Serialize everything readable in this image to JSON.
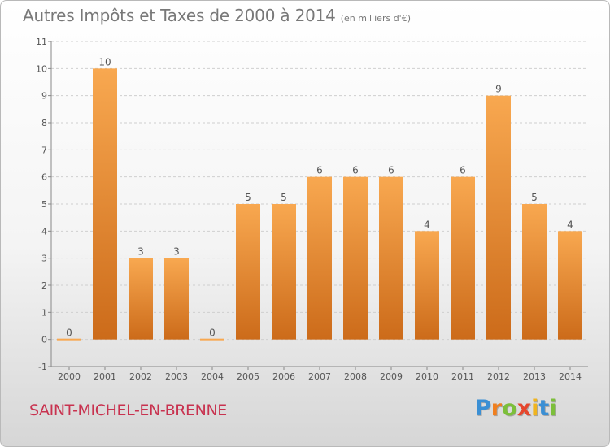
{
  "title": "Autres Impôts et Taxes de 2000 à 2014",
  "unit": "(en milliers d'€)",
  "commune": "SAINT-MICHEL-EN-BRENNE",
  "logo": {
    "text": "Proxiti",
    "letters": [
      {
        "ch": "P",
        "color": "#3a8fd4"
      },
      {
        "ch": "r",
        "color": "#f07f1e"
      },
      {
        "ch": "o",
        "color": "#7cbf3a"
      },
      {
        "ch": "x",
        "color": "#e6462d"
      },
      {
        "ch": "i",
        "color": "#f0b41e"
      },
      {
        "ch": "t",
        "color": "#3a8fd4"
      },
      {
        "ch": "i",
        "color": "#7cbf3a"
      }
    ]
  },
  "colors": {
    "bar_light": "#f8a850",
    "bar_dark": "#cc6b1a",
    "axis": "#888888",
    "grid": "#cfcfcf",
    "text": "#555555",
    "title": "#787878",
    "commune": "#c8324f"
  },
  "chart_data": {
    "type": "bar",
    "categories": [
      "2000",
      "2001",
      "2002",
      "2003",
      "2004",
      "2005",
      "2006",
      "2007",
      "2008",
      "2009",
      "2010",
      "2011",
      "2012",
      "2013",
      "2014"
    ],
    "values": [
      0,
      10,
      3,
      3,
      0,
      5,
      5,
      6,
      6,
      6,
      4,
      6,
      9,
      5,
      4
    ],
    "data_labels": [
      "0",
      "10",
      "3",
      "3",
      "0",
      "5",
      "5",
      "6",
      "6",
      "6",
      "4",
      "6",
      "9",
      "5",
      "4"
    ],
    "ylim": [
      -1,
      11
    ],
    "yticks": [
      -1,
      0,
      1,
      2,
      3,
      4,
      5,
      6,
      7,
      8,
      9,
      10,
      11
    ],
    "ytick_labels": [
      "-1",
      "0",
      "1",
      "2",
      "3",
      "4",
      "5",
      "6",
      "7",
      "8",
      "9",
      "10",
      "11"
    ],
    "grid": "horizontal dashed",
    "title": "Autres Impôts et Taxes de 2000 à 2014",
    "xlabel": "",
    "ylabel": ""
  }
}
